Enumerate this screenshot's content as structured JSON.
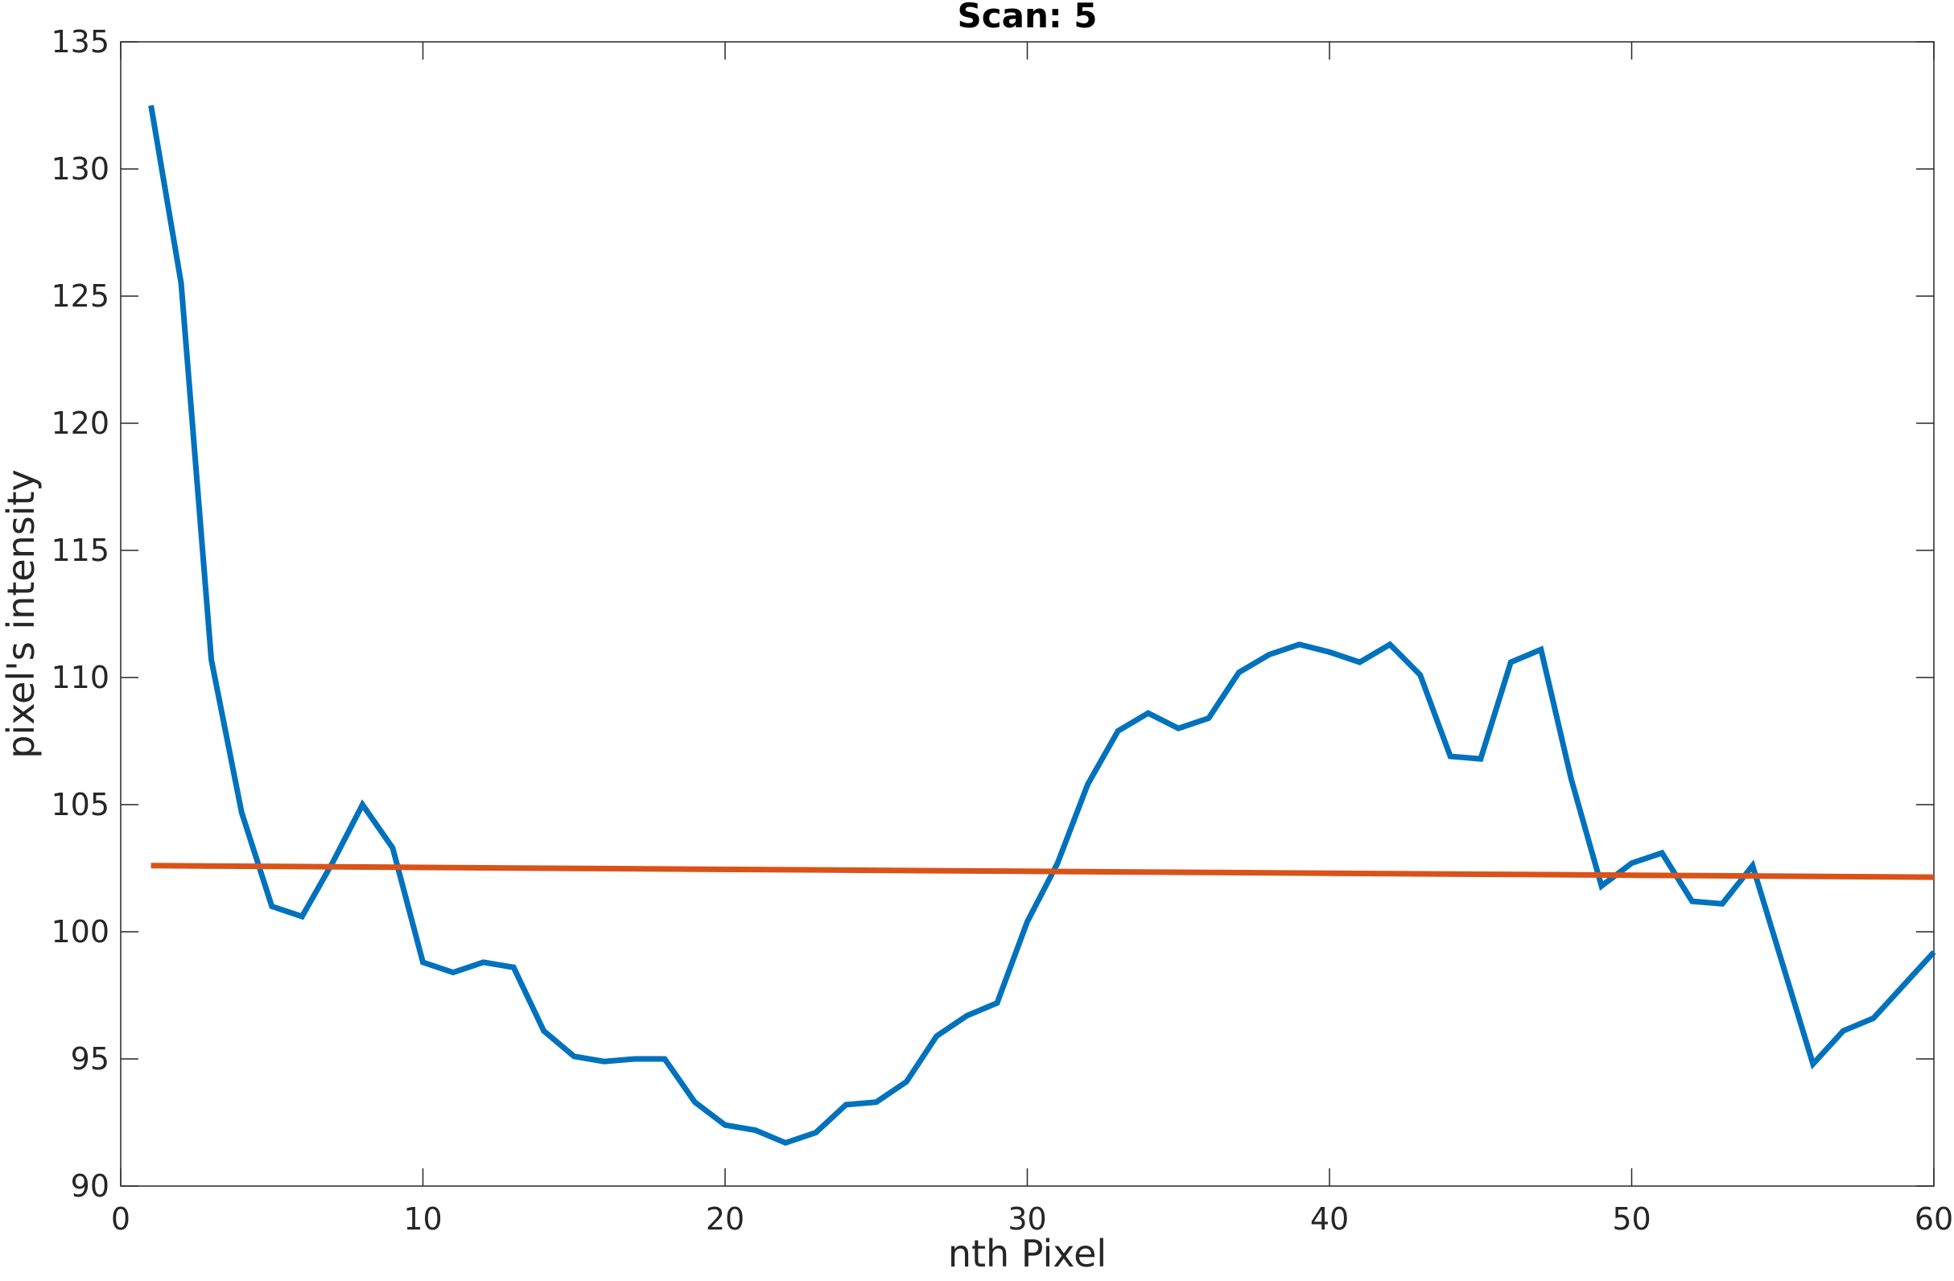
{
  "chart_data": {
    "type": "line",
    "title": "Scan: 5",
    "xlabel": "nth Pixel",
    "ylabel": "pixel's intensity",
    "xlim": [
      0,
      60
    ],
    "ylim": [
      90,
      135
    ],
    "xticks": [
      0,
      10,
      20,
      30,
      40,
      50,
      60
    ],
    "yticks": [
      90,
      95,
      100,
      105,
      110,
      115,
      120,
      125,
      130,
      135
    ],
    "grid": false,
    "legend": "none",
    "series": [
      {
        "color": "#0072BD",
        "x": [
          1,
          2,
          3,
          4,
          5,
          6,
          7,
          8,
          9,
          10,
          11,
          12,
          13,
          14,
          15,
          16,
          17,
          18,
          19,
          20,
          21,
          22,
          23,
          24,
          25,
          26,
          27,
          28,
          29,
          30,
          31,
          32,
          33,
          34,
          35,
          36,
          37,
          38,
          39,
          40,
          41,
          42,
          43,
          44,
          45,
          46,
          47,
          48,
          49,
          50,
          51,
          52,
          53,
          54,
          55,
          56,
          57,
          58,
          59,
          60
        ],
        "values": [
          132.5,
          125.5,
          110.7,
          104.7,
          101.0,
          100.6,
          102.7,
          105.0,
          103.3,
          98.8,
          98.4,
          98.8,
          98.6,
          96.1,
          95.1,
          94.9,
          95.0,
          95.0,
          93.3,
          92.4,
          92.2,
          91.7,
          92.1,
          93.2,
          93.3,
          94.1,
          95.9,
          96.7,
          97.2,
          100.4,
          102.7,
          105.8,
          107.9,
          108.6,
          108.0,
          108.4,
          110.2,
          110.9,
          111.3,
          111.0,
          110.6,
          111.3,
          110.1,
          106.9,
          106.8,
          110.6,
          111.1,
          106.0,
          101.8,
          102.7,
          103.1,
          101.2,
          101.1,
          102.6,
          98.7,
          94.8,
          96.1,
          96.6,
          97.9,
          99.2
        ]
      },
      {
        "color": "#D95319",
        "x": [
          1,
          60
        ],
        "values": [
          102.6,
          102.15
        ]
      }
    ]
  }
}
